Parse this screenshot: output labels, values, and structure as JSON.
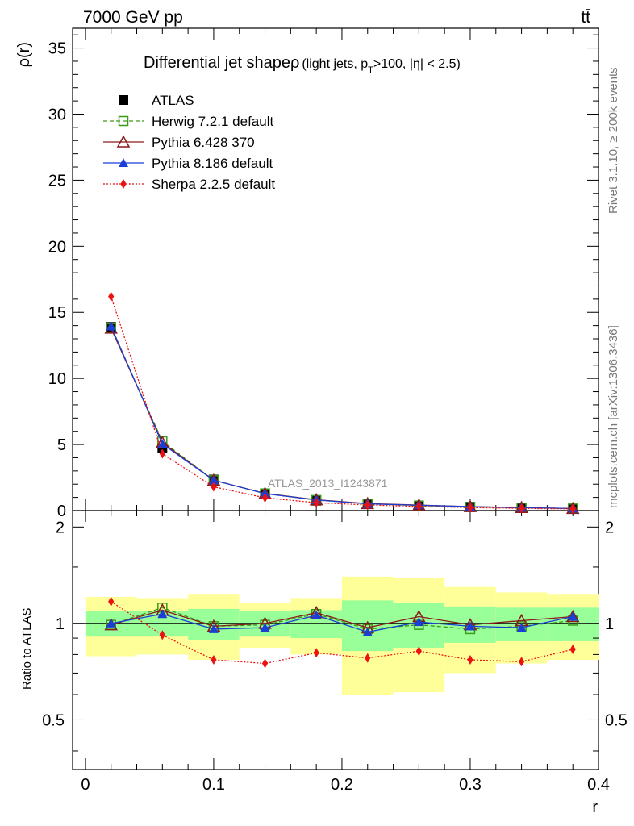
{
  "header": {
    "energy_label": "7000 GeV pp",
    "process_label": "tt̄"
  },
  "side_text": {
    "rivet": "Rivet 3.1.10, ≥ 200k events",
    "mcplots": "mcplots.cern.ch [arXiv:1306.3436]"
  },
  "watermark": "ATLAS_2013_I1243871",
  "colors": {
    "atlas": "#000000",
    "herwig": "#3a9a1a",
    "pythia6": "#8b1a1a",
    "pythia8": "#1a3fd6",
    "sherpa": "#ee1111",
    "band_inner": "#99ff99",
    "band_outer": "#ffff99"
  },
  "chart_data": [
    {
      "type": "line",
      "title": "Differential jet shapeρ (light jets, pT>100, |η| < 2.5)",
      "title_main": "Differential jet shapeρ",
      "title_sub_parts": [
        "(light jets, p",
        "T",
        ">100, |η| < 2.5)"
      ],
      "xlabel": "r",
      "ylabel": "ρ(r)",
      "xlim": [
        -0.01,
        0.4
      ],
      "ylim": [
        0,
        36.5
      ],
      "yticks": [
        0,
        5,
        10,
        15,
        20,
        25,
        30,
        35
      ],
      "legend_position": "top-left",
      "x": [
        0.02,
        0.06,
        0.1,
        0.14,
        0.18,
        0.22,
        0.26,
        0.3,
        0.34,
        0.38
      ],
      "series": [
        {
          "name": "ATLAS",
          "key": "atlas",
          "marker": "square-filled",
          "line": "none",
          "values": [
            13.9,
            4.7,
            2.35,
            1.3,
            0.75,
            0.55,
            0.4,
            0.3,
            0.22,
            0.15
          ]
        },
        {
          "name": "Herwig 7.2.1 default",
          "key": "herwig",
          "marker": "square-open",
          "line": "dashed",
          "values": [
            13.8,
            5.25,
            2.3,
            1.3,
            0.8,
            0.52,
            0.38,
            0.28,
            0.22,
            0.16
          ]
        },
        {
          "name": "Pythia 6.428 370",
          "key": "pythia6",
          "marker": "triangle-open",
          "line": "solid",
          "values": [
            13.8,
            5.15,
            2.3,
            1.3,
            0.82,
            0.53,
            0.42,
            0.3,
            0.23,
            0.16
          ]
        },
        {
          "name": "Pythia 8.186 default",
          "key": "pythia8",
          "marker": "triangle-filled",
          "line": "solid",
          "values": [
            13.95,
            5.05,
            2.3,
            1.28,
            0.81,
            0.51,
            0.41,
            0.3,
            0.22,
            0.16
          ]
        },
        {
          "name": "Sherpa 2.2.5 default",
          "key": "sherpa",
          "marker": "diamond-filled",
          "line": "dotted",
          "values": [
            16.2,
            4.3,
            1.8,
            0.97,
            0.6,
            0.43,
            0.32,
            0.23,
            0.17,
            0.13
          ]
        }
      ]
    },
    {
      "type": "line",
      "title": "",
      "xlabel": "r",
      "ylabel": "Ratio to ATLAS",
      "xlim": [
        -0.01,
        0.4
      ],
      "ylim": [
        0.35,
        2.25
      ],
      "yticks": [
        0.5,
        1,
        2
      ],
      "xticks": [
        0,
        0.1,
        0.2,
        0.3,
        0.4
      ],
      "xticklabels": [
        "0",
        "0.1",
        "0.2",
        "0.3",
        "0.4"
      ],
      "bins": [
        [
          0,
          0.04
        ],
        [
          0.04,
          0.08
        ],
        [
          0.08,
          0.12
        ],
        [
          0.12,
          0.16
        ],
        [
          0.16,
          0.2
        ],
        [
          0.2,
          0.24
        ],
        [
          0.24,
          0.28
        ],
        [
          0.28,
          0.32
        ],
        [
          0.32,
          0.36
        ],
        [
          0.36,
          0.4
        ]
      ],
      "band_inner": [
        [
          0.91,
          1.09
        ],
        [
          0.91,
          1.09
        ],
        [
          0.89,
          1.11
        ],
        [
          0.91,
          1.09
        ],
        [
          0.9,
          1.1
        ],
        [
          0.82,
          1.18
        ],
        [
          0.84,
          1.16
        ],
        [
          0.87,
          1.13
        ],
        [
          0.88,
          1.12
        ],
        [
          0.88,
          1.12
        ]
      ],
      "band_outer": [
        [
          0.79,
          1.21
        ],
        [
          0.8,
          1.2
        ],
        [
          0.77,
          1.23
        ],
        [
          0.84,
          1.16
        ],
        [
          0.8,
          1.2
        ],
        [
          0.6,
          1.4
        ],
        [
          0.61,
          1.39
        ],
        [
          0.7,
          1.3
        ],
        [
          0.75,
          1.25
        ],
        [
          0.77,
          1.23
        ]
      ],
      "x": [
        0.02,
        0.06,
        0.1,
        0.14,
        0.18,
        0.22,
        0.26,
        0.3,
        0.34,
        0.38
      ],
      "series": [
        {
          "name": "Herwig 7.2.1 default",
          "key": "herwig",
          "marker": "square-open",
          "line": "dashed",
          "values": [
            0.99,
            1.12,
            0.98,
            0.99,
            1.07,
            0.96,
            0.99,
            0.96,
            0.98,
            1.02
          ]
        },
        {
          "name": "Pythia 6.428 370",
          "key": "pythia6",
          "marker": "triangle-open",
          "line": "solid",
          "values": [
            0.99,
            1.1,
            0.98,
            1.0,
            1.08,
            0.97,
            1.05,
            0.99,
            1.02,
            1.05
          ]
        },
        {
          "name": "Pythia 8.186 default",
          "key": "pythia8",
          "marker": "triangle-filled",
          "line": "solid",
          "values": [
            1.0,
            1.07,
            0.96,
            0.97,
            1.06,
            0.94,
            1.01,
            0.98,
            0.97,
            1.05
          ]
        },
        {
          "name": "Sherpa 2.2.5 default",
          "key": "sherpa",
          "marker": "diamond-filled",
          "line": "dotted",
          "values": [
            1.17,
            0.92,
            0.77,
            0.75,
            0.81,
            0.78,
            0.82,
            0.77,
            0.76,
            0.83
          ]
        }
      ]
    }
  ]
}
